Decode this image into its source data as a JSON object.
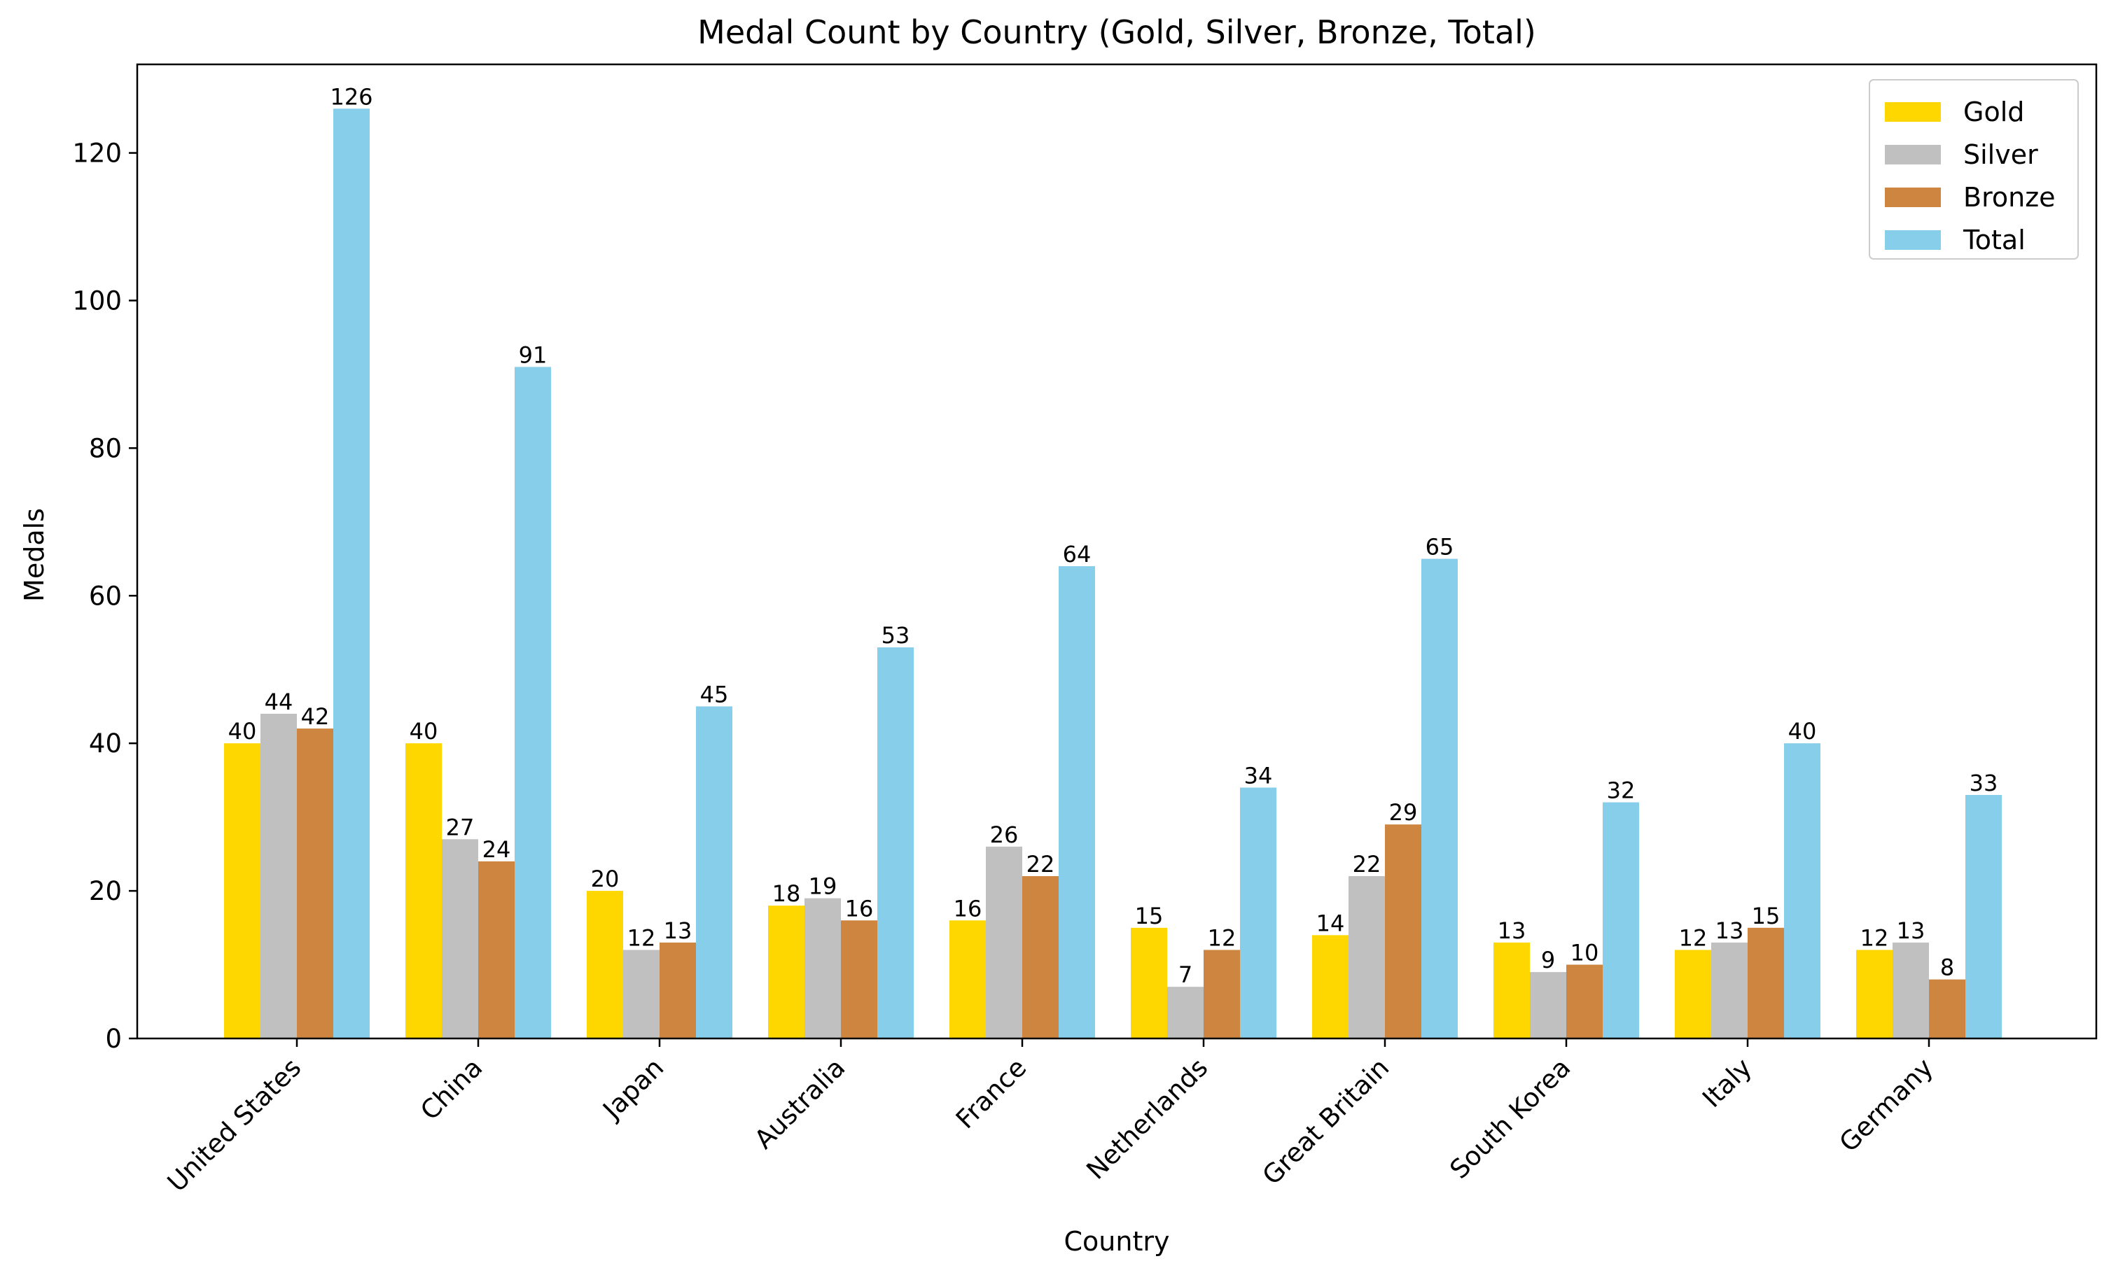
{
  "chart_data": {
    "type": "bar",
    "title": "Medal Count by Country (Gold, Silver, Bronze, Total)",
    "xlabel": "Country",
    "ylabel": "Medals",
    "ylim": [
      0,
      132
    ],
    "yticks": [
      0,
      20,
      40,
      60,
      80,
      100,
      120
    ],
    "grid": false,
    "legend_position": "top-right",
    "categories": [
      "United States",
      "China",
      "Japan",
      "Australia",
      "France",
      "Netherlands",
      "Great Britain",
      "South Korea",
      "Italy",
      "Germany"
    ],
    "series": [
      {
        "name": "Gold",
        "color": "#FFD700",
        "values": [
          40,
          40,
          20,
          18,
          16,
          15,
          14,
          13,
          12,
          12
        ]
      },
      {
        "name": "Silver",
        "color": "#C0C0C0",
        "values": [
          44,
          27,
          12,
          19,
          26,
          7,
          22,
          9,
          13,
          13
        ]
      },
      {
        "name": "Bronze",
        "color": "#CD853F",
        "values": [
          42,
          24,
          13,
          16,
          22,
          12,
          29,
          10,
          15,
          8
        ]
      },
      {
        "name": "Total",
        "color": "#87CEEB",
        "values": [
          126,
          91,
          45,
          53,
          64,
          34,
          65,
          32,
          40,
          33
        ]
      }
    ]
  }
}
